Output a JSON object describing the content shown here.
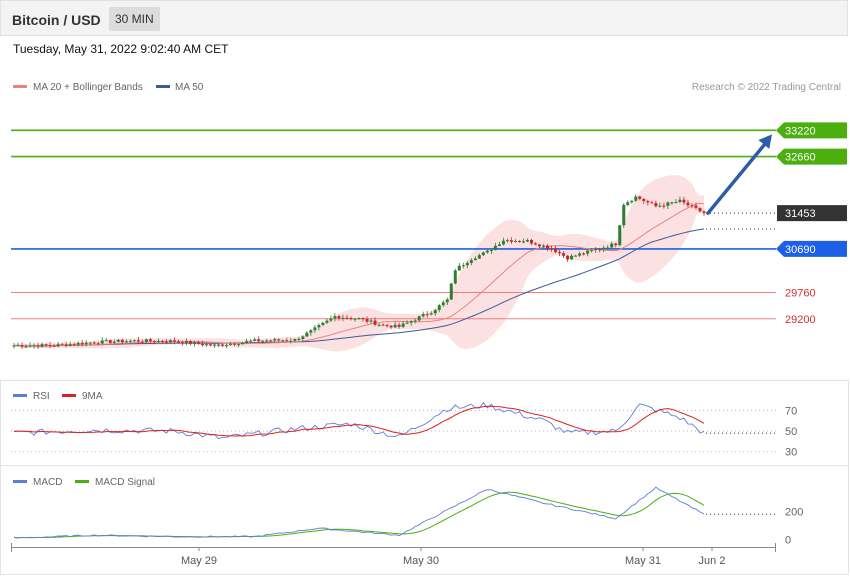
{
  "header": {
    "title": "Bitcoin / USD",
    "timeframe": "30 MIN"
  },
  "datetime": "Tuesday, May 31, 2022 9:02:40 AM CET",
  "credit": "Research © 2022 Trading Central",
  "colors": {
    "candle_up": "#2e7d32",
    "candle_down": "#c62828",
    "ma20": "#f08080",
    "ma50": "#3a5a9a",
    "band": "#fadada",
    "resistance": "#4caf10",
    "pivot": "#1e5fe8",
    "support": "#f08080",
    "last": "#333333",
    "arrow": "#2a5ea8",
    "rsi": "#5b7fd6",
    "rsi_ma": "#e02020",
    "macd": "#5b7fd6",
    "macd_signal": "#4caf10"
  },
  "chart_data": [
    {
      "type": "candlestick",
      "title": "Bitcoin / USD",
      "legend": [
        {
          "name": "MA 20 + Bollinger Bands",
          "color": "#f08080"
        },
        {
          "name": "MA 50",
          "color": "#3a5a9a"
        }
      ],
      "legend_position": "top-left",
      "ylim": [
        28000,
        34400
      ],
      "x_labels": [
        "May 29",
        "May 30",
        "May 31",
        "Jun 2"
      ],
      "levels": [
        {
          "value": 33220,
          "label": "33220",
          "kind": "resistance"
        },
        {
          "value": 32660,
          "label": "32660",
          "kind": "resistance"
        },
        {
          "value": 31453,
          "label": "31453",
          "kind": "last"
        },
        {
          "value": 30690,
          "label": "30690",
          "kind": "pivot"
        },
        {
          "value": 29760,
          "label": "29760",
          "kind": "support"
        },
        {
          "value": 29200,
          "label": "29200",
          "kind": "support"
        }
      ],
      "forecast": {
        "from": 31453,
        "to": 33220,
        "direction": "up"
      },
      "key_points": [
        {
          "x": 0,
          "close": 28630
        },
        {
          "x": 10,
          "close": 28630
        },
        {
          "x": 20,
          "close": 28700
        },
        {
          "x": 30,
          "close": 28730
        },
        {
          "x": 40,
          "close": 28720
        },
        {
          "x": 50,
          "close": 28630
        },
        {
          "x": 60,
          "close": 28730
        },
        {
          "x": 70,
          "close": 28750
        },
        {
          "x": 74,
          "close": 28930
        },
        {
          "x": 80,
          "close": 29250
        },
        {
          "x": 86,
          "close": 29200
        },
        {
          "x": 92,
          "close": 29060
        },
        {
          "x": 96,
          "close": 29030
        },
        {
          "x": 104,
          "close": 29350
        },
        {
          "x": 108,
          "close": 29600
        },
        {
          "x": 110,
          "close": 30250
        },
        {
          "x": 114,
          "close": 30480
        },
        {
          "x": 118,
          "close": 30630
        },
        {
          "x": 122,
          "close": 30880
        },
        {
          "x": 128,
          "close": 30860
        },
        {
          "x": 134,
          "close": 30700
        },
        {
          "x": 138,
          "close": 30500
        },
        {
          "x": 144,
          "close": 30650
        },
        {
          "x": 148,
          "close": 30750
        },
        {
          "x": 150,
          "close": 30800
        },
        {
          "x": 152,
          "close": 31650
        },
        {
          "x": 155,
          "close": 31800
        },
        {
          "x": 160,
          "close": 31600
        },
        {
          "x": 166,
          "close": 31710
        },
        {
          "x": 172,
          "close": 31453
        }
      ]
    },
    {
      "type": "line",
      "legend": [
        {
          "name": "RSI",
          "color": "#5b7fd6"
        },
        {
          "name": "9MA",
          "color": "#e02020"
        }
      ],
      "ylim": [
        20,
        82
      ],
      "ticks": [
        70,
        50,
        30
      ],
      "last_value": 48,
      "key_points": [
        {
          "x": 0,
          "rsi": 48
        },
        {
          "x": 20,
          "rsi": 51
        },
        {
          "x": 40,
          "rsi": 50
        },
        {
          "x": 52,
          "rsi": 43
        },
        {
          "x": 70,
          "rsi": 52
        },
        {
          "x": 84,
          "rsi": 57
        },
        {
          "x": 96,
          "rsi": 44
        },
        {
          "x": 108,
          "rsi": 72
        },
        {
          "x": 118,
          "rsi": 75
        },
        {
          "x": 132,
          "rsi": 60
        },
        {
          "x": 138,
          "rsi": 48
        },
        {
          "x": 150,
          "rsi": 50
        },
        {
          "x": 156,
          "rsi": 75
        },
        {
          "x": 166,
          "rsi": 63
        },
        {
          "x": 172,
          "rsi": 48
        }
      ]
    },
    {
      "type": "line",
      "legend": [
        {
          "name": "MACD",
          "color": "#5b7fd6"
        },
        {
          "name": "MACD Signal",
          "color": "#4caf10"
        }
      ],
      "ylim": [
        -40,
        440
      ],
      "ticks": [
        200,
        0
      ],
      "last_value": 180,
      "key_points": [
        {
          "x": 0,
          "macd": 10
        },
        {
          "x": 20,
          "macd": 30
        },
        {
          "x": 40,
          "macd": 20
        },
        {
          "x": 60,
          "macd": 20
        },
        {
          "x": 76,
          "macd": 80
        },
        {
          "x": 96,
          "macd": 30
        },
        {
          "x": 118,
          "macd": 360
        },
        {
          "x": 132,
          "macd": 260
        },
        {
          "x": 150,
          "macd": 150
        },
        {
          "x": 160,
          "macd": 370
        },
        {
          "x": 172,
          "macd": 180
        }
      ]
    }
  ]
}
